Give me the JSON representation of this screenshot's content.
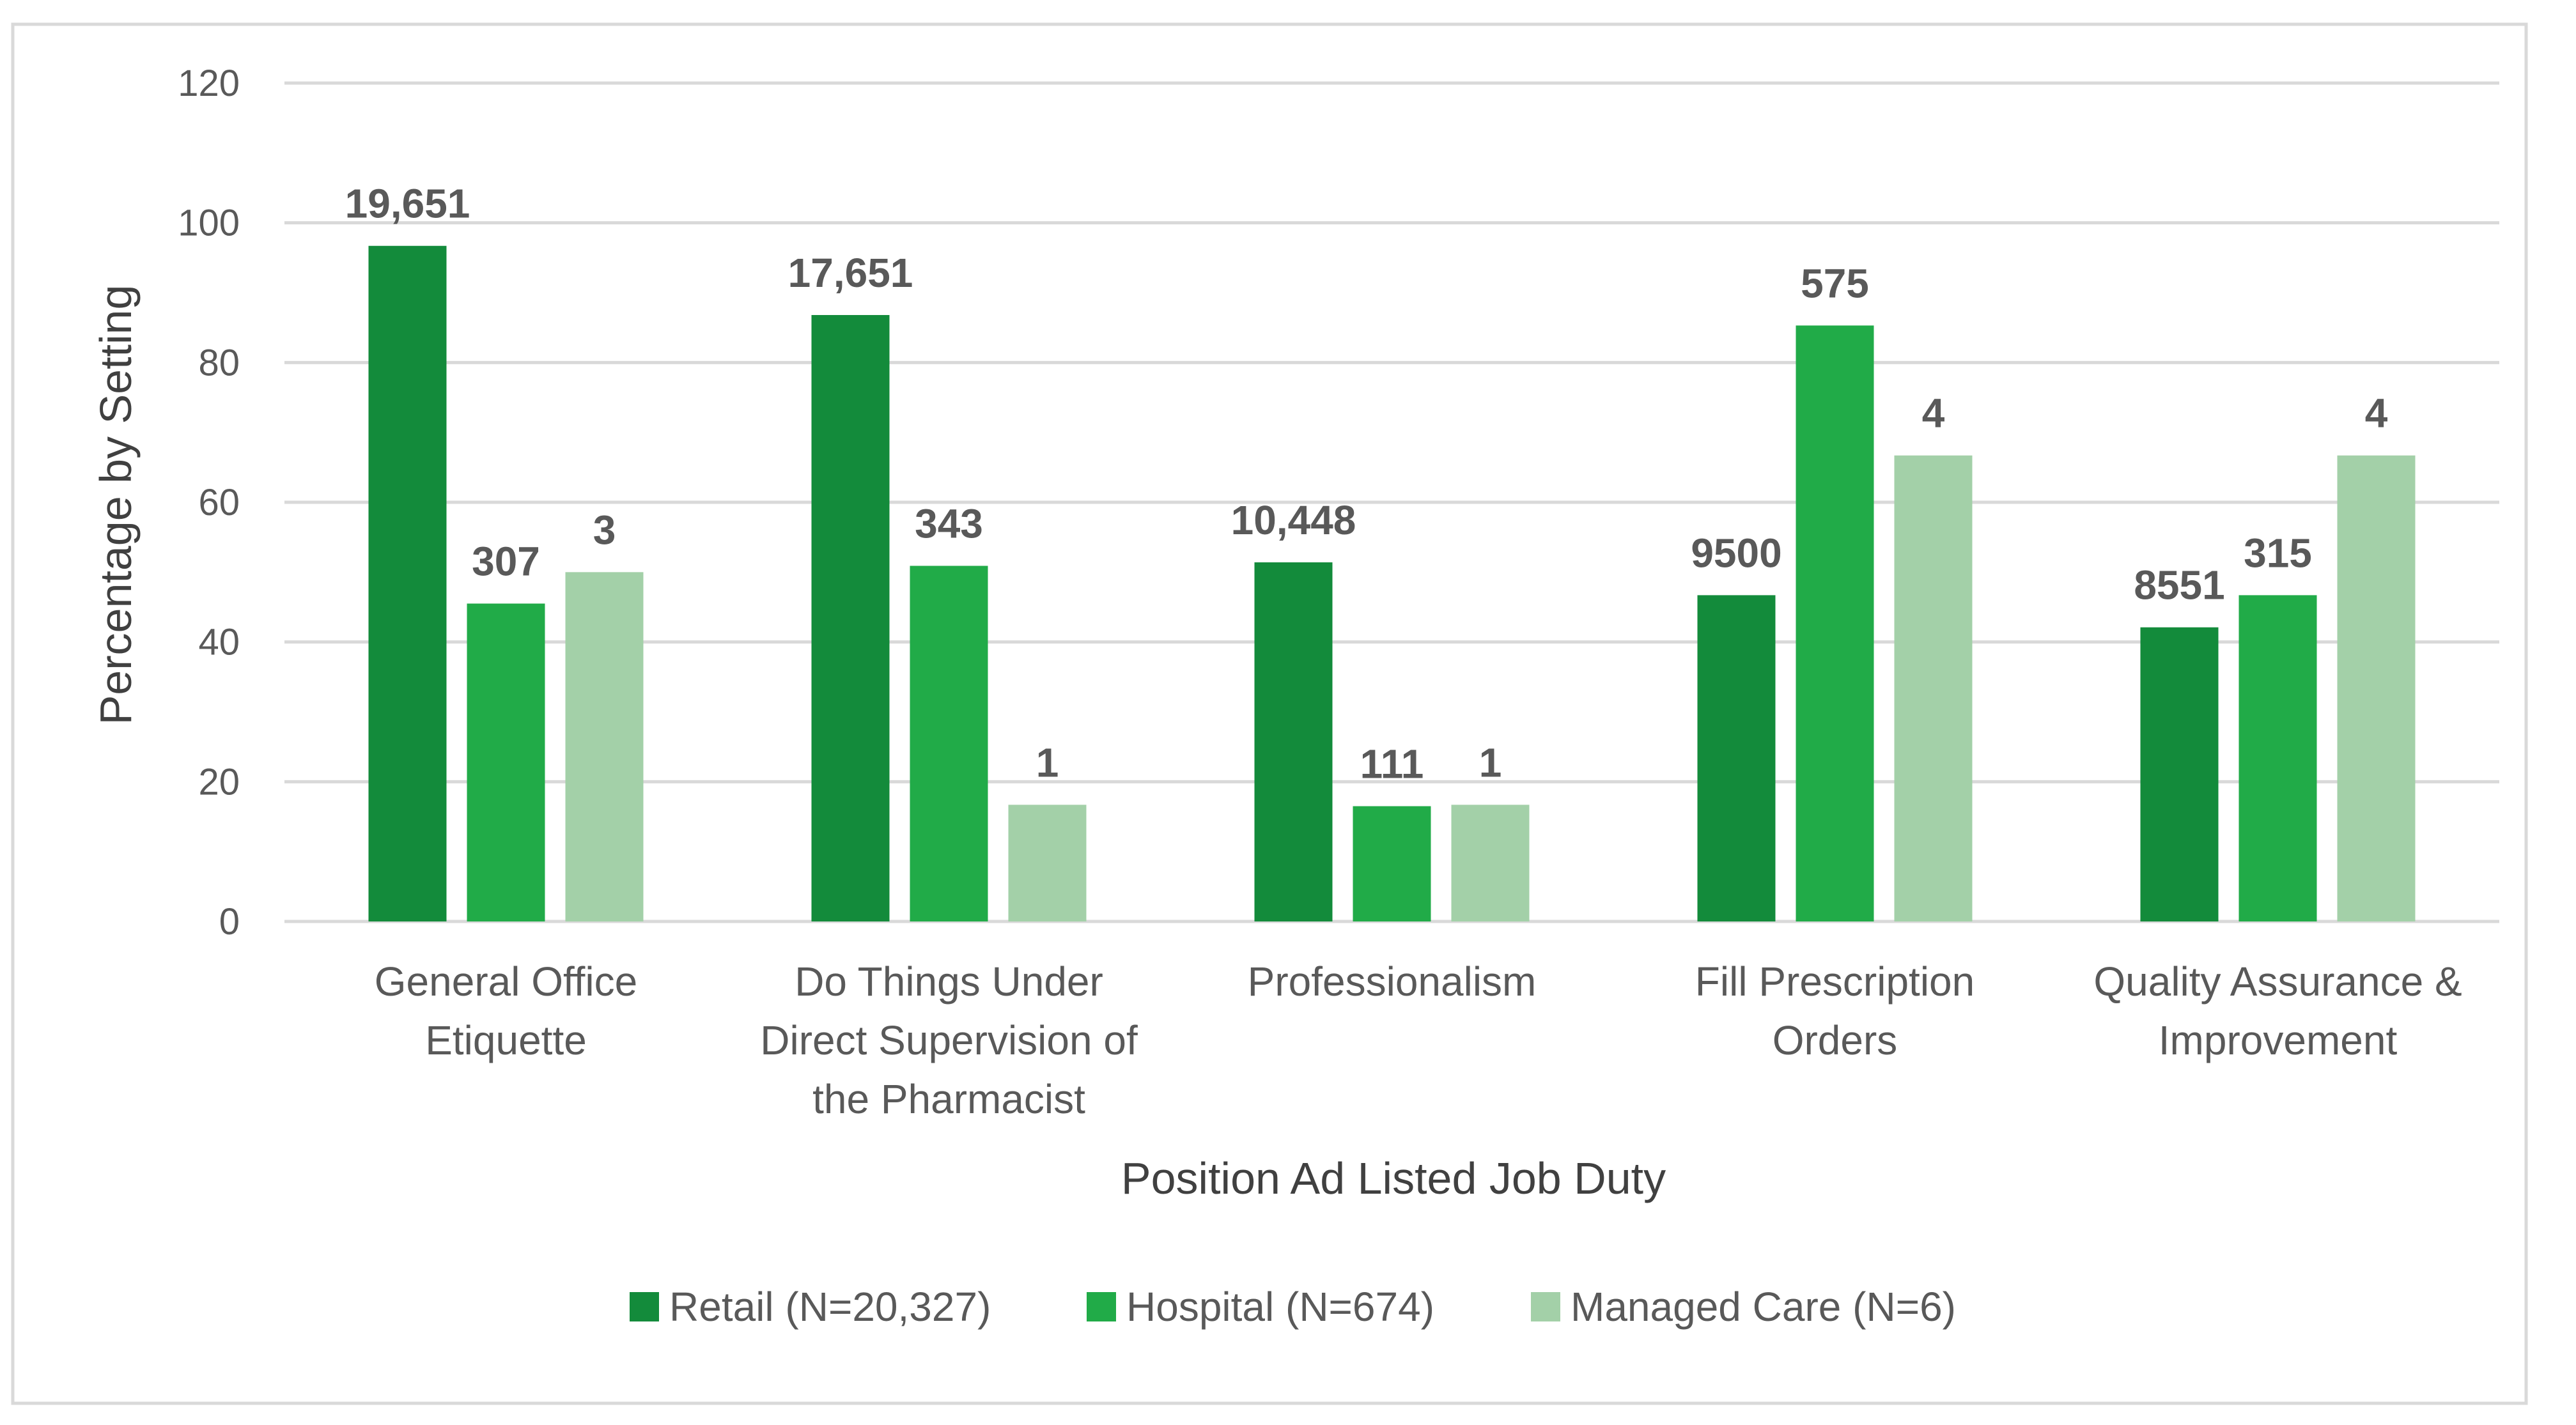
{
  "chart_data": {
    "type": "bar",
    "title": "",
    "xlabel": "Position Ad Listed Job Duty",
    "ylabel": "Percentage by Setting",
    "ylim": [
      0,
      120
    ],
    "yticks": [
      0,
      20,
      40,
      60,
      80,
      100,
      120
    ],
    "grid": true,
    "legend_position": "bottom",
    "categories": [
      [
        "General Office",
        "Etiquette"
      ],
      [
        "Do Things Under",
        "Direct Supervision of",
        "the Pharmacist"
      ],
      [
        "Professionalism"
      ],
      [
        "Fill Prescription",
        "Orders"
      ],
      [
        "Quality Assurance &",
        "Improvement"
      ]
    ],
    "series": [
      {
        "name": "Retail (N=20,327)",
        "color": "#138B3B",
        "values": [
          96.7,
          86.8,
          51.4,
          46.7,
          42.1
        ],
        "labels": [
          "19,651",
          "17,651",
          "10,448",
          "9500",
          "8551"
        ]
      },
      {
        "name": "Hospital (N=674)",
        "color": "#21AB48",
        "values": [
          45.5,
          50.9,
          16.5,
          85.3,
          46.7
        ],
        "labels": [
          "307",
          "343",
          "111",
          "575",
          "315"
        ]
      },
      {
        "name": "Managed Care (N=6)",
        "color": "#A3D0A8",
        "values": [
          50.0,
          16.7,
          16.7,
          66.7,
          66.7
        ],
        "labels": [
          "3",
          "1",
          "1",
          "4",
          "4"
        ]
      }
    ]
  }
}
